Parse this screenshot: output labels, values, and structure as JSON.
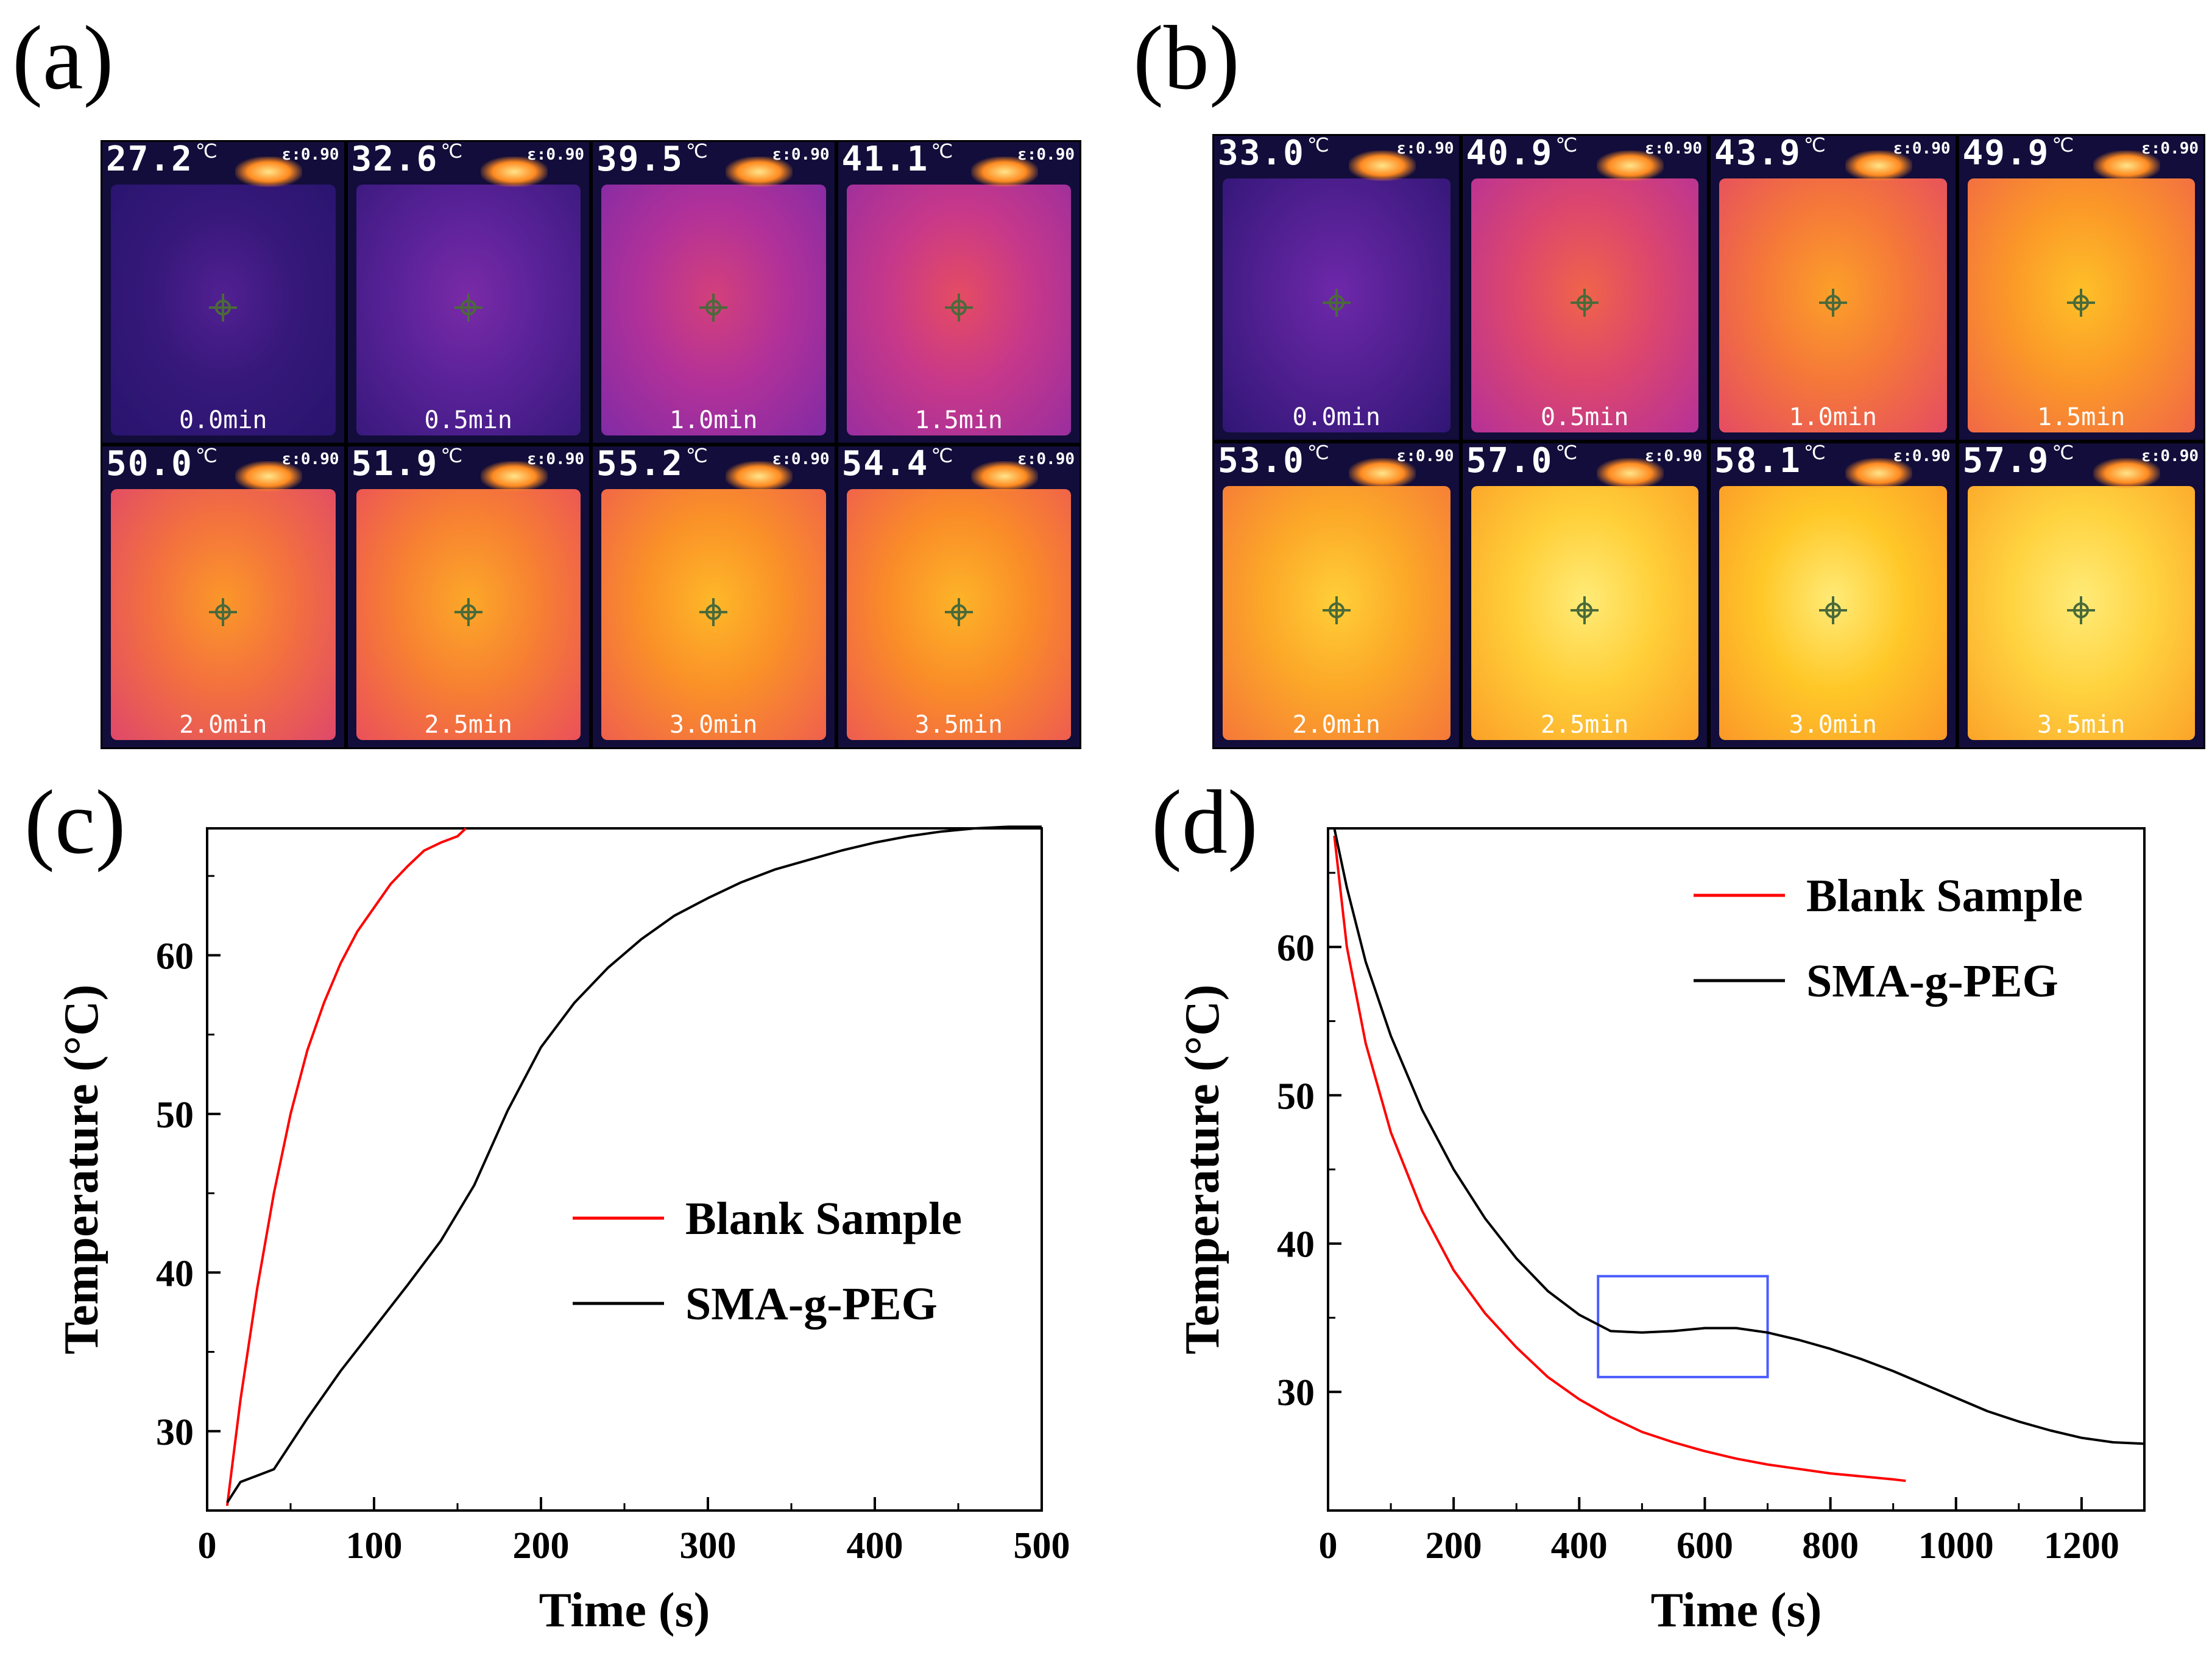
{
  "panels": {
    "a": "(a)",
    "b": "(b)",
    "c": "(c)",
    "d": "(d)"
  },
  "thermal_a": [
    {
      "temp": "27.2",
      "unit": "℃",
      "emissivity": "ε:0.90",
      "time": "0.0min",
      "heat": 0.05
    },
    {
      "temp": "32.6",
      "unit": "℃",
      "emissivity": "ε:0.90",
      "time": "0.5min",
      "heat": 0.18
    },
    {
      "temp": "39.5",
      "unit": "℃",
      "emissivity": "ε:0.90",
      "time": "1.0min",
      "heat": 0.42
    },
    {
      "temp": "41.1",
      "unit": "℃",
      "emissivity": "ε:0.90",
      "time": "1.5min",
      "heat": 0.48
    },
    {
      "temp": "50.0",
      "unit": "℃",
      "emissivity": "ε:0.90",
      "time": "2.0min",
      "heat": 0.68
    },
    {
      "temp": "51.9",
      "unit": "℃",
      "emissivity": "ε:0.90",
      "time": "2.5min",
      "heat": 0.72
    },
    {
      "temp": "55.2",
      "unit": "℃",
      "emissivity": "ε:0.90",
      "time": "3.0min",
      "heat": 0.76
    },
    {
      "temp": "54.4",
      "unit": "℃",
      "emissivity": "ε:0.90",
      "time": "3.5min",
      "heat": 0.75
    }
  ],
  "thermal_b": [
    {
      "temp": "33.0",
      "unit": "℃",
      "emissivity": "ε:0.90",
      "time": "0.0min",
      "heat": 0.15
    },
    {
      "temp": "40.9",
      "unit": "℃",
      "emissivity": "ε:0.90",
      "time": "0.5min",
      "heat": 0.55
    },
    {
      "temp": "43.9",
      "unit": "℃",
      "emissivity": "ε:0.90",
      "time": "1.0min",
      "heat": 0.7
    },
    {
      "temp": "49.9",
      "unit": "℃",
      "emissivity": "ε:0.90",
      "time": "1.5min",
      "heat": 0.78
    },
    {
      "temp": "53.0",
      "unit": "℃",
      "emissivity": "ε:0.90",
      "time": "2.0min",
      "heat": 0.82
    },
    {
      "temp": "57.0",
      "unit": "℃",
      "emissivity": "ε:0.90",
      "time": "2.5min",
      "heat": 0.92
    },
    {
      "temp": "58.1",
      "unit": "℃",
      "emissivity": "ε:0.90",
      "time": "3.0min",
      "heat": 0.9
    },
    {
      "temp": "57.9",
      "unit": "℃",
      "emissivity": "ε:0.90",
      "time": "3.5min",
      "heat": 0.93
    }
  ],
  "chart_data": [
    {
      "type": "line",
      "panel": "c",
      "title": "",
      "xlabel": "Time (s)",
      "ylabel": "Temperature (°C)",
      "xlim": [
        0,
        500
      ],
      "ylim": [
        25,
        68
      ],
      "xticks": [
        0,
        100,
        200,
        300,
        400,
        500
      ],
      "yticks": [
        30,
        40,
        50,
        60
      ],
      "grid": false,
      "legend_position": "middle-right",
      "series": [
        {
          "name": "Blank Sample",
          "color": "#ff0000",
          "x": [
            12,
            20,
            30,
            40,
            50,
            60,
            70,
            80,
            90,
            100,
            110,
            120,
            130,
            140,
            150,
            155
          ],
          "y": [
            25.3,
            32,
            39,
            45,
            50,
            54,
            57,
            59.5,
            61.5,
            63,
            64.5,
            65.6,
            66.6,
            67.1,
            67.5,
            68
          ]
        },
        {
          "name": "SMA-g-PEG",
          "color": "#000000",
          "x": [
            12,
            20,
            30,
            40,
            60,
            80,
            100,
            120,
            140,
            160,
            180,
            200,
            220,
            240,
            260,
            280,
            300,
            320,
            340,
            360,
            380,
            400,
            420,
            440,
            460,
            480,
            500
          ],
          "y": [
            25.5,
            26.8,
            27.2,
            27.6,
            30.8,
            33.8,
            36.5,
            39.2,
            42,
            45.5,
            50.2,
            54.2,
            57,
            59.2,
            61,
            62.5,
            63.6,
            64.6,
            65.4,
            66,
            66.6,
            67.1,
            67.5,
            67.8,
            68,
            68.1,
            68.1
          ]
        }
      ]
    },
    {
      "type": "line",
      "panel": "d",
      "title": "",
      "xlabel": "Time (s)",
      "ylabel": "Temperature (°C)",
      "xlim": [
        0,
        1300
      ],
      "ylim": [
        22,
        68
      ],
      "xticks": [
        0,
        200,
        400,
        600,
        800,
        1000,
        1200
      ],
      "yticks": [
        30,
        40,
        50,
        60
      ],
      "grid": false,
      "legend_position": "top-right",
      "highlight_box": {
        "x": [
          430,
          700
        ],
        "y": [
          31,
          37.8
        ],
        "color": "#4a5cff"
      },
      "series": [
        {
          "name": "Blank Sample",
          "color": "#ff0000",
          "x": [
            10,
            30,
            60,
            100,
            150,
            200,
            250,
            300,
            350,
            400,
            450,
            500,
            550,
            600,
            650,
            700,
            750,
            800,
            850,
            900,
            920
          ],
          "y": [
            67.5,
            60,
            53.5,
            47.5,
            42.2,
            38.2,
            35.3,
            33,
            31,
            29.5,
            28.3,
            27.3,
            26.6,
            26,
            25.5,
            25.1,
            24.8,
            24.5,
            24.3,
            24.1,
            24
          ]
        },
        {
          "name": "SMA-g-PEG",
          "color": "#000000",
          "x": [
            10,
            30,
            60,
            100,
            150,
            200,
            250,
            300,
            350,
            400,
            450,
            500,
            550,
            600,
            650,
            700,
            750,
            800,
            850,
            900,
            950,
            1000,
            1050,
            1100,
            1150,
            1200,
            1250,
            1300
          ],
          "y": [
            68,
            64,
            59,
            54,
            49,
            45,
            41.7,
            39,
            36.8,
            35.2,
            34.1,
            34,
            34.1,
            34.3,
            34.3,
            34,
            33.5,
            32.9,
            32.2,
            31.4,
            30.5,
            29.6,
            28.7,
            28,
            27.4,
            26.9,
            26.6,
            26.5
          ]
        }
      ]
    }
  ]
}
